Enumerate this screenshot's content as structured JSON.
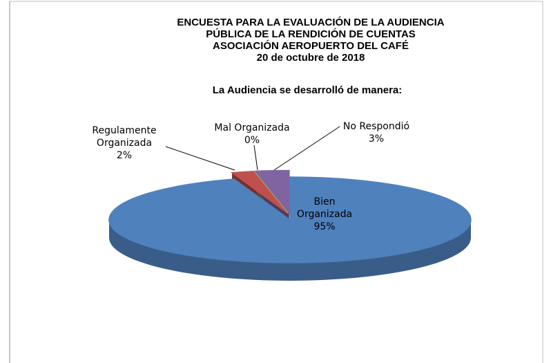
{
  "chart_data": {
    "type": "pie3d",
    "title": [
      "ENCUESTA PARA LA EVALUACIÓN DE LA AUDIENCIA",
      "PÚBLICA DE LA RENDICIÓN DE CUENTAS",
      "ASOCIACIÓN AEROPUERTO DEL CAFÉ",
      "20 de octubre de 2018"
    ],
    "subtitle": "La Audiencia se desarrolló de manera:",
    "categories": [
      "Bien Organizada",
      "Regulamente Organizada",
      "Mal Organizada",
      "No Respondió"
    ],
    "values": [
      95,
      2,
      0,
      3
    ],
    "value_labels": [
      "95%",
      "2%",
      "0%",
      "3%"
    ],
    "colors": [
      "#4f81bd",
      "#c0504d",
      "#9bbb59",
      "#8064a2"
    ]
  }
}
